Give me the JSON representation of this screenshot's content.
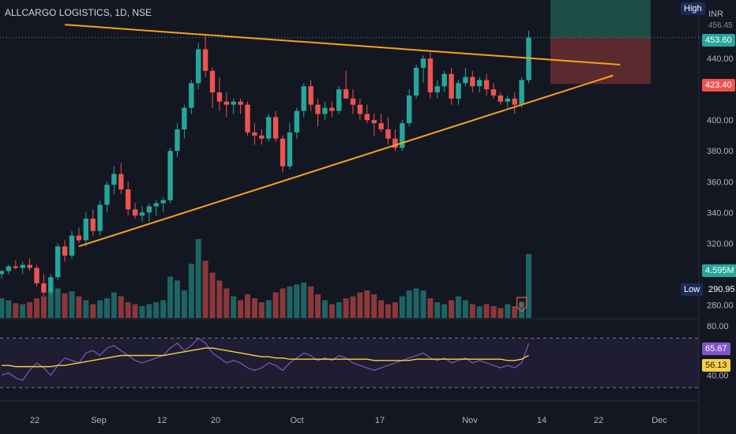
{
  "header": {
    "symbol_title": "ALLCARGO LOGISTICS, 1D, NSE",
    "currency": "INR"
  },
  "badges": {
    "high_label": "High",
    "high_value": "456.45",
    "last_price": "453.60",
    "sl_price": "423.40",
    "volume_value": "4.595M",
    "low_label": "Low",
    "low_value": "290.95",
    "rsi_value": "65.67",
    "rsi_ma_value": "56.13"
  },
  "colors": {
    "background": "#131722",
    "bull": "#26a69a",
    "bear": "#ef5350",
    "trendline": "#f7a21b",
    "rsi_line": "#7e57c2",
    "rsi_ma": "#f5d142",
    "target_zone": "#1e4d45",
    "stop_zone": "#5a2a2e"
  },
  "chart_data": [
    {
      "type": "candlestick",
      "name": "price",
      "y_axis_ticks": [
        280,
        300,
        320,
        340,
        360,
        380,
        400,
        420,
        440
      ],
      "y_axis_tick_labels": [
        "280.00",
        "",
        "320.00",
        "340.00",
        "360.00",
        "380.00",
        "400.00",
        "",
        "440.00"
      ],
      "ylim": [
        272,
        478
      ],
      "x_axis_labels": [
        "22",
        "Sep",
        "12",
        "20",
        "Oct",
        "17",
        "Nov",
        "14",
        "22",
        "Dec"
      ],
      "ohlc": [
        [
          300,
          303,
          297,
          302
        ],
        [
          302,
          306,
          300,
          305
        ],
        [
          305,
          309,
          303,
          304
        ],
        [
          304,
          308,
          300,
          306
        ],
        [
          306,
          310,
          302,
          304
        ],
        [
          304,
          306,
          292,
          294
        ],
        [
          294,
          300,
          286,
          288
        ],
        [
          288,
          300,
          286,
          298
        ],
        [
          298,
          320,
          296,
          318
        ],
        [
          318,
          322,
          308,
          312
        ],
        [
          312,
          328,
          310,
          325
        ],
        [
          325,
          330,
          320,
          322
        ],
        [
          322,
          340,
          318,
          336
        ],
        [
          336,
          342,
          325,
          328
        ],
        [
          328,
          348,
          325,
          345
        ],
        [
          345,
          360,
          340,
          358
        ],
        [
          358,
          370,
          352,
          365
        ],
        [
          365,
          372,
          352,
          355
        ],
        [
          355,
          360,
          338,
          342
        ],
        [
          342,
          346,
          336,
          338
        ],
        [
          338,
          344,
          334,
          340
        ],
        [
          340,
          346,
          334,
          344
        ],
        [
          344,
          348,
          338,
          346
        ],
        [
          346,
          350,
          340,
          348
        ],
        [
          348,
          382,
          346,
          380
        ],
        [
          380,
          398,
          376,
          394
        ],
        [
          394,
          410,
          388,
          408
        ],
        [
          408,
          426,
          404,
          424
        ],
        [
          424,
          450,
          420,
          446
        ],
        [
          446,
          456,
          428,
          432
        ],
        [
          432,
          434,
          408,
          418
        ],
        [
          418,
          428,
          406,
          412
        ],
        [
          412,
          418,
          402,
          410
        ],
        [
          410,
          414,
          404,
          412
        ],
        [
          412,
          414,
          404,
          410
        ],
        [
          410,
          412,
          390,
          392
        ],
        [
          392,
          398,
          384,
          390
        ],
        [
          390,
          394,
          384,
          388
        ],
        [
          388,
          404,
          386,
          402
        ],
        [
          402,
          406,
          386,
          388
        ],
        [
          388,
          390,
          366,
          370
        ],
        [
          370,
          398,
          368,
          392
        ],
        [
          392,
          408,
          388,
          406
        ],
        [
          406,
          424,
          402,
          422
        ],
        [
          422,
          426,
          406,
          410
        ],
        [
          410,
          414,
          396,
          404
        ],
        [
          404,
          412,
          400,
          408
        ],
        [
          408,
          412,
          402,
          406
        ],
        [
          406,
          422,
          404,
          420
        ],
        [
          420,
          432,
          416,
          414
        ],
        [
          414,
          420,
          404,
          410
        ],
        [
          410,
          414,
          400,
          404
        ],
        [
          404,
          410,
          398,
          400
        ],
        [
          400,
          404,
          390,
          398
        ],
        [
          398,
          404,
          392,
          394
        ],
        [
          394,
          402,
          384,
          388
        ],
        [
          388,
          394,
          380,
          382
        ],
        [
          382,
          400,
          380,
          398
        ],
        [
          398,
          420,
          396,
          416
        ],
        [
          416,
          436,
          414,
          434
        ],
        [
          434,
          442,
          424,
          440
        ],
        [
          440,
          444,
          414,
          418
        ],
        [
          418,
          426,
          414,
          422
        ],
        [
          422,
          432,
          418,
          430
        ],
        [
          430,
          434,
          410,
          414
        ],
        [
          414,
          426,
          410,
          424
        ],
        [
          424,
          434,
          422,
          428
        ],
        [
          428,
          432,
          418,
          422
        ],
        [
          422,
          428,
          418,
          426
        ],
        [
          426,
          430,
          416,
          420
        ],
        [
          420,
          424,
          414,
          416
        ],
        [
          416,
          418,
          410,
          412
        ],
        [
          412,
          416,
          408,
          414
        ],
        [
          414,
          418,
          404,
          410
        ],
        [
          410,
          428,
          408,
          426
        ],
        [
          426,
          458,
          424,
          453.6
        ]
      ],
      "volume": [
        20,
        18,
        15,
        14,
        16,
        20,
        22,
        26,
        30,
        25,
        27,
        22,
        18,
        14,
        18,
        20,
        26,
        22,
        16,
        14,
        12,
        14,
        16,
        18,
        42,
        38,
        28,
        55,
        80,
        58,
        46,
        38,
        30,
        22,
        18,
        24,
        20,
        16,
        18,
        26,
        30,
        32,
        34,
        36,
        32,
        24,
        18,
        14,
        16,
        20,
        22,
        26,
        28,
        24,
        18,
        14,
        16,
        22,
        28,
        30,
        28,
        20,
        16,
        14,
        18,
        22,
        18,
        14,
        12,
        14,
        12,
        10,
        14,
        12,
        16,
        65
      ],
      "volume_axis_value": "4.595M",
      "trendlines": [
        {
          "label": "upper",
          "from": {
            "bar": 9,
            "price": 462
          },
          "to": {
            "bar": 88,
            "price": 436
          }
        },
        {
          "label": "lower",
          "from": {
            "bar": 11,
            "price": 318
          },
          "to": {
            "bar": 87,
            "price": 429
          }
        }
      ],
      "position": {
        "entry": 453.6,
        "target_top": 484,
        "stop": 423.4
      }
    },
    {
      "type": "line",
      "name": "rsi",
      "ylim": [
        20,
        85
      ],
      "y_axis_tick_labels": [
        "80.00",
        "40.00"
      ],
      "bands": [
        70,
        30
      ],
      "series": [
        {
          "values": [
            40,
            42,
            38,
            36,
            44,
            50,
            46,
            40,
            48,
            54,
            52,
            50,
            58,
            60,
            56,
            62,
            64,
            60,
            56,
            52,
            50,
            52,
            54,
            56,
            62,
            66,
            60,
            64,
            70,
            66,
            58,
            54,
            50,
            52,
            50,
            46,
            44,
            46,
            50,
            48,
            44,
            50,
            54,
            58,
            56,
            52,
            54,
            52,
            56,
            54,
            50,
            48,
            46,
            44,
            46,
            48,
            50,
            52,
            54,
            56,
            58,
            54,
            52,
            54,
            50,
            52,
            54,
            50,
            52,
            50,
            48,
            46,
            48,
            46,
            50,
            65.67
          ]
        },
        {
          "values": [
            48,
            48,
            47,
            47,
            47,
            47,
            47,
            47,
            48,
            48,
            49,
            50,
            51,
            52,
            53,
            54,
            55,
            56,
            56,
            56,
            56,
            56,
            56,
            56,
            57,
            58,
            59,
            60,
            61,
            62,
            62,
            61,
            60,
            59,
            58,
            57,
            56,
            55,
            55,
            54,
            54,
            53,
            53,
            53,
            53,
            53,
            53,
            53,
            53,
            53,
            53,
            53,
            53,
            52,
            52,
            52,
            52,
            52,
            52,
            53,
            53,
            53,
            53,
            53,
            53,
            53,
            53,
            53,
            53,
            53,
            53,
            53,
            52,
            52,
            53,
            56.13
          ]
        }
      ]
    }
  ]
}
